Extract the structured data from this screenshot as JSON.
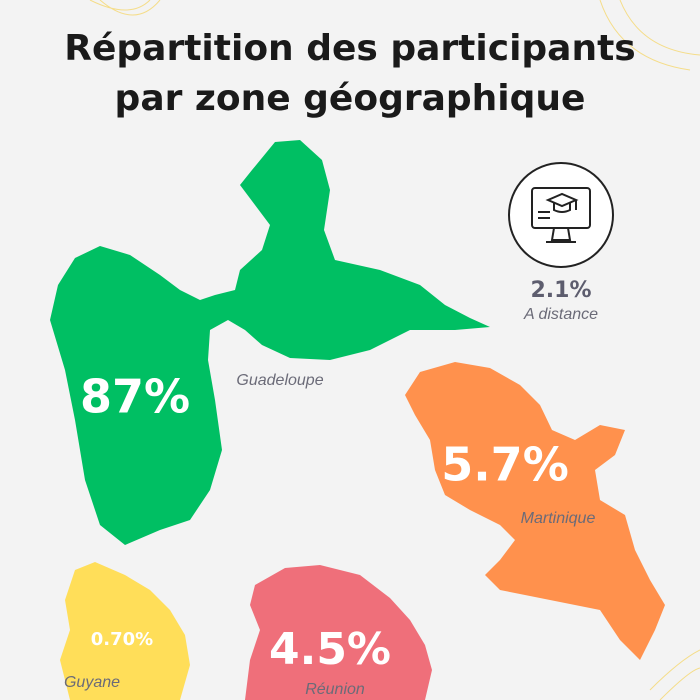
{
  "chart_data": {
    "type": "pictogram",
    "title": "Répartition des participants par zone géographique",
    "categories": [
      "Guadeloupe",
      "Martinique",
      "Réunion",
      "Guyane",
      "A distance"
    ],
    "values": [
      87,
      5.7,
      4.5,
      0.7,
      2.1
    ],
    "value_labels": [
      "87%",
      "5.7%",
      "4.5%",
      "0.70%",
      "2.1%"
    ],
    "colors": [
      "#00bf63",
      "#ff914d",
      "#ef6f7a",
      "#ffde59",
      "#222222"
    ]
  }
}
